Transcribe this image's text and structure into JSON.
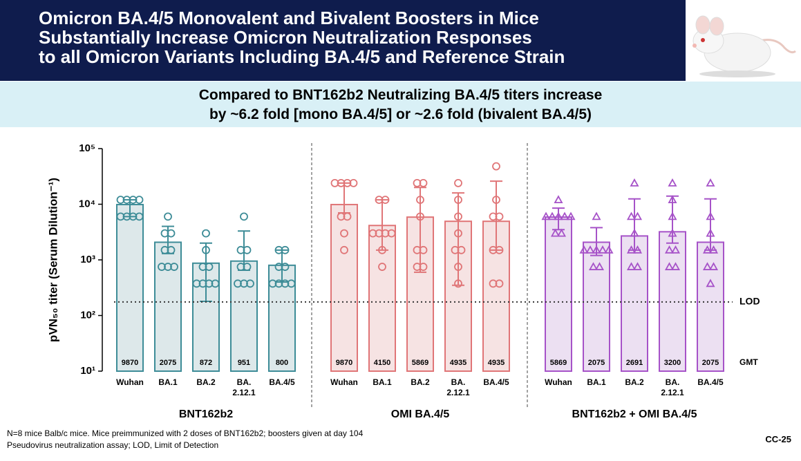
{
  "header": {
    "title_lines": [
      "Omicron BA.4/5 Monovalent and Bivalent Boosters in Mice",
      "Substantially Increase Omicron Neutralization Responses",
      "to all Omicron Variants Including BA.4/5 and Reference Strain"
    ]
  },
  "subheader": {
    "lines": [
      "Compared to BNT162b2 Neutralizing BA.4/5 titers increase",
      "by ~6.2 fold [mono BA.4/5] or ~2.6 fold (bivalent BA.4/5)"
    ]
  },
  "chart_data": {
    "type": "bar",
    "log_scale": true,
    "y_label": "pVN₅₀ titer (Serum Dilution⁻¹)",
    "ylim": [
      10,
      100000
    ],
    "yticks": [
      {
        "value": 10,
        "label": "10¹"
      },
      {
        "value": 100,
        "label": "10²"
      },
      {
        "value": 1000,
        "label": "10³"
      },
      {
        "value": 10000,
        "label": "10⁴"
      },
      {
        "value": 100000,
        "label": "10⁵"
      }
    ],
    "categories": [
      "Wuhan",
      "BA.1",
      "BA.2",
      "BA. 2.12.1",
      "BA.4/5"
    ],
    "lod": 175,
    "lod_label": "LOD",
    "gmt_label": "GMT",
    "series": [
      {
        "name": "BNT162b2",
        "color": "#3d8c97",
        "fill_color": "#dde8ea",
        "marker": "circle",
        "values": [
          9870,
          2075,
          872,
          951,
          800
        ],
        "error_low": [
          6000,
          1300,
          180,
          650,
          400
        ],
        "error_high": [
          12000,
          4000,
          2000,
          3300,
          1500
        ],
        "points": [
          [
            12000,
            12000,
            12000,
            12000,
            6000,
            6000,
            6000,
            6000
          ],
          [
            6000,
            3000,
            3000,
            1500,
            1500,
            750,
            750,
            750
          ],
          [
            3000,
            1500,
            750,
            750,
            375,
            375,
            375,
            375
          ],
          [
            6000,
            1500,
            1500,
            750,
            750,
            375,
            375,
            375
          ],
          [
            1500,
            1500,
            750,
            750,
            375,
            375,
            375,
            375
          ]
        ]
      },
      {
        "name": "OMI BA.4/5",
        "color": "#e07577",
        "fill_color": "#f6e3e3",
        "marker": "circle",
        "values": [
          9870,
          4150,
          5869,
          4935,
          4935
        ],
        "error_low": [
          7000,
          1500,
          600,
          350,
          1500
        ],
        "error_high": [
          24000,
          12000,
          20000,
          16000,
          26000
        ],
        "points": [
          [
            24000,
            24000,
            24000,
            24000,
            6000,
            6000,
            3000,
            1500
          ],
          [
            12000,
            12000,
            3000,
            3000,
            3000,
            3000,
            1500,
            750
          ],
          [
            24000,
            24000,
            12000,
            6000,
            1500,
            1500,
            750,
            750
          ],
          [
            24000,
            12000,
            6000,
            3000,
            1500,
            1500,
            750,
            375
          ],
          [
            48000,
            12000,
            6000,
            6000,
            1500,
            1500,
            375,
            375
          ]
        ]
      },
      {
        "name": "BNT162b2 + OMI BA.4/5",
        "color": "#a652c8",
        "fill_color": "#ece0f2",
        "marker": "triangle",
        "values": [
          5869,
          2075,
          2691,
          3200,
          2075
        ],
        "error_low": [
          3500,
          1200,
          1500,
          2000,
          1500
        ],
        "error_high": [
          8500,
          3800,
          12500,
          14000,
          12500
        ],
        "points": [
          [
            12000,
            6000,
            6000,
            6000,
            6000,
            6000,
            3000,
            3000
          ],
          [
            6000,
            1500,
            1500,
            1500,
            1500,
            1500,
            750,
            750
          ],
          [
            24000,
            6000,
            6000,
            3000,
            1500,
            1500,
            750,
            750
          ],
          [
            24000,
            12000,
            6000,
            3000,
            1500,
            1500,
            750,
            750
          ],
          [
            24000,
            6000,
            3000,
            1500,
            1500,
            750,
            750,
            375
          ]
        ]
      }
    ]
  },
  "footnotes": [
    "N=8 mice Balb/c mice. Mice preimmunized with 2 doses of BNT162b2; boosters given at day 104",
    "Pseudovirus neutralization assay; LOD, Limit of Detection"
  ],
  "slide_id": "CC-25"
}
